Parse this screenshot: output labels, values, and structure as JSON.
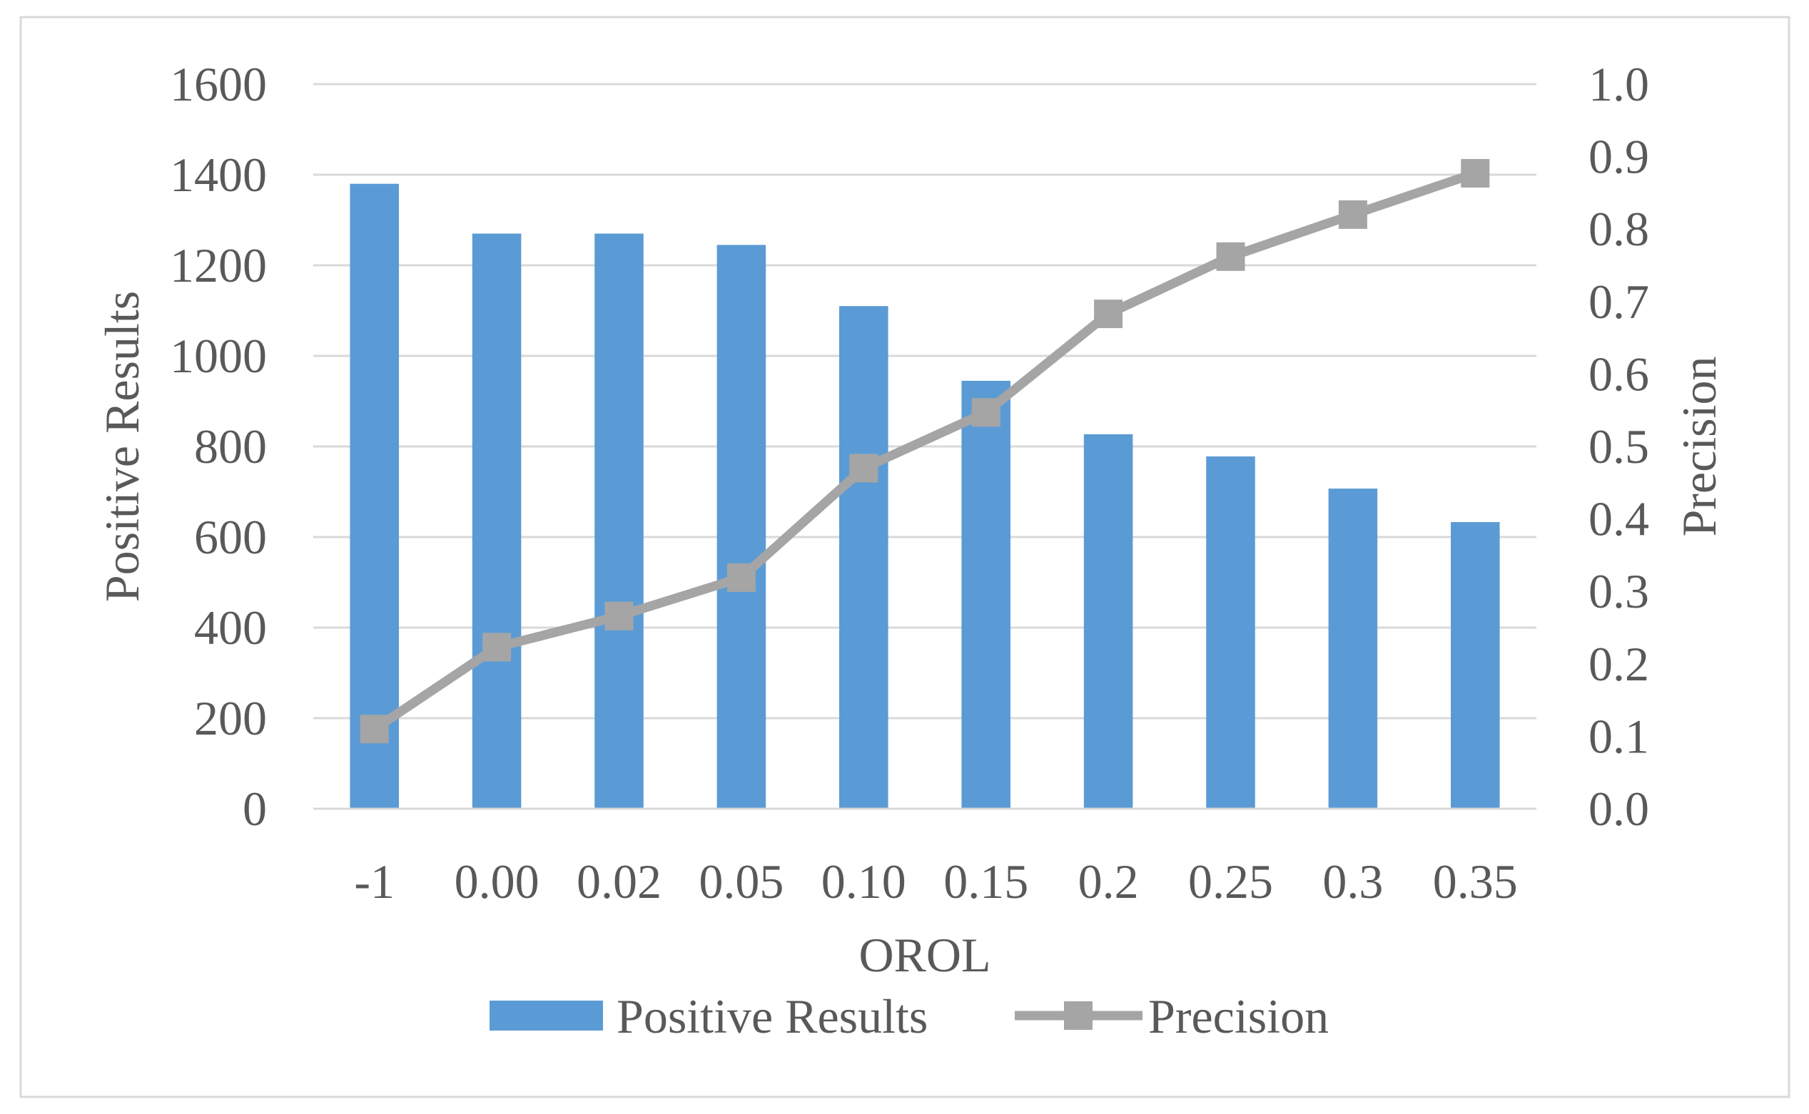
{
  "chart_data": {
    "type": "bar",
    "categories": [
      "-1",
      "0.00",
      "0.02",
      "0.05",
      "0.10",
      "0.15",
      "0.2",
      "0.25",
      "0.3",
      "0.35"
    ],
    "series": [
      {
        "name": "Positive Results",
        "type": "bar",
        "secondary_axis": false,
        "values": [
          1380,
          1270,
          1270,
          1245,
          1110,
          945,
          827,
          778,
          707,
          633
        ]
      },
      {
        "name": "Precision",
        "type": "line",
        "secondary_axis": true,
        "values": [
          0.11,
          0.223,
          0.266,
          0.319,
          0.47,
          0.547,
          0.683,
          0.762,
          0.82,
          0.877
        ]
      }
    ],
    "xlabel": "OROL",
    "ylabel": "Positive Results",
    "y2label": "Precision",
    "ylim": [
      0,
      1600
    ],
    "y2lim": [
      0,
      1.0
    ],
    "yticks": [
      "0",
      "200",
      "400",
      "600",
      "800",
      "1000",
      "1200",
      "1400",
      "1600"
    ],
    "y2ticks": [
      "0.0",
      "0.1",
      "0.2",
      "0.3",
      "0.4",
      "0.5",
      "0.6",
      "0.7",
      "0.8",
      "0.9",
      "1.0"
    ],
    "grid": true,
    "legend": {
      "placement": "bottom",
      "entries": [
        "Positive Results",
        "Precision"
      ]
    }
  },
  "colors": {
    "bar": "#5B9BD5",
    "line": "#A5A5A5",
    "grid": "#D9D9D9",
    "text": "#595959",
    "border": "#D9D9D9"
  }
}
